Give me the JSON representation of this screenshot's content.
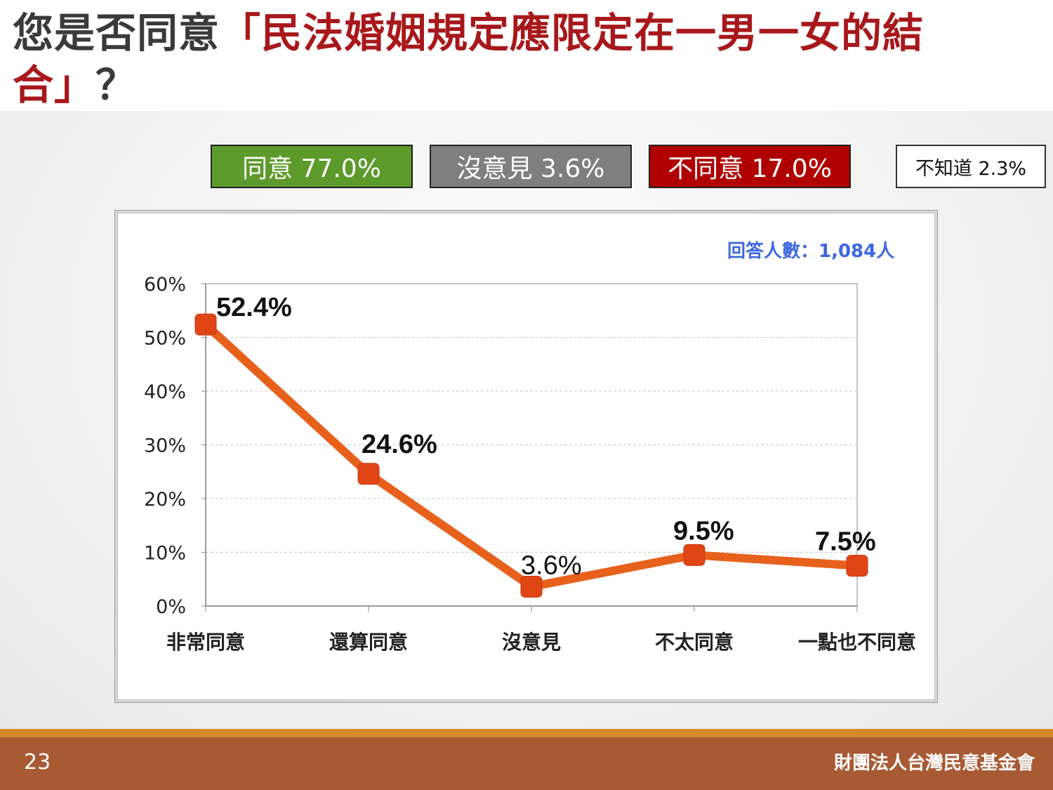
{
  "title": {
    "prefix": "您是否同意",
    "highlight": "「民法婚姻規定應限定在一男一女的結合」",
    "suffix": "？"
  },
  "summary": {
    "agree": "同意 77.0%",
    "no_opinion": "沒意見 3.6%",
    "disagree": "不同意 17.0%",
    "dont_know": "不知道 2.3%"
  },
  "sample_size": "回答人數：1,084人",
  "footer": {
    "page_number": "23",
    "organization": "財團法人台灣民意基金會"
  },
  "colors": {
    "line": "#e8611c",
    "marker": "#e04515",
    "agree": "#5c9a2b",
    "no_opinion": "#7f7f7f",
    "disagree": "#b00000"
  },
  "chart_data": {
    "type": "line",
    "categories": [
      "非常同意",
      "還算同意",
      "沒意見",
      "不太同意",
      "一點也不同意"
    ],
    "values": [
      52.4,
      24.6,
      3.6,
      9.5,
      7.5
    ],
    "data_labels": [
      "52.4%",
      "24.6%",
      "3.6%",
      "9.5%",
      "7.5%"
    ],
    "ylim": [
      0,
      60
    ],
    "yticks": [
      0,
      10,
      20,
      30,
      40,
      50,
      60
    ],
    "ytick_labels": [
      "0%",
      "10%",
      "20%",
      "30%",
      "40%",
      "50%",
      "60%"
    ],
    "grid": true
  }
}
